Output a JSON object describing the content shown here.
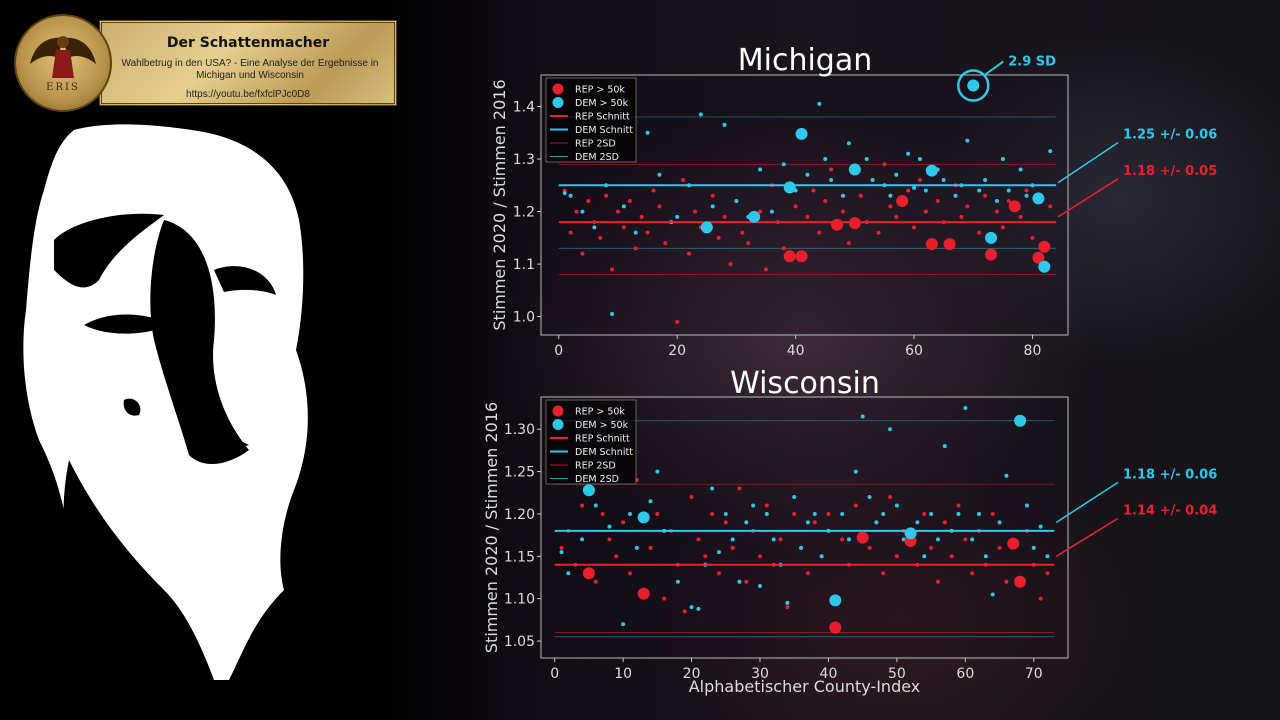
{
  "banner": {
    "title": "Der Schattenmacher",
    "subtitle": "Wahlbetrug in den USA? - Eine Analyse der Ergebnisse in Michigan und Wisconsin",
    "url": "https://youtu.be/fxfclPJc0D8",
    "logo_text": "ERIS"
  },
  "colors": {
    "rep": "#e8202e",
    "dem": "#2ec8ec",
    "axis": "#cccccc"
  },
  "chart_data": [
    {
      "type": "scatter",
      "title": "Michigan",
      "ylabel": "Stimmen 2020 / Stimmen 2016",
      "xlabel": "",
      "xlim": [
        -3,
        86
      ],
      "ylim": [
        0.965,
        1.46
      ],
      "xticks": [
        0,
        20,
        40,
        60,
        80
      ],
      "yticks": [
        1.0,
        1.1,
        1.2,
        1.3,
        1.4
      ],
      "ytick_labels": [
        "1.0",
        "1.1",
        "1.2",
        "1.3",
        "1.4"
      ],
      "legend": [
        "REP > 50k",
        "DEM > 50k",
        "REP Schnitt",
        "DEM Schnitt",
        "REP 2SD",
        "DEM 2SD"
      ],
      "legend_position": "top-left",
      "rep_mean": 1.18,
      "dem_mean": 1.25,
      "rep_2sd": [
        1.08,
        1.29
      ],
      "dem_2sd": [
        1.13,
        1.38
      ],
      "annotations": [
        {
          "text": "2.9 SD",
          "color": "dem",
          "x": 70,
          "y": 1.44
        },
        {
          "text": "1.25 +/- 0.06",
          "color": "dem",
          "y": 1.255
        },
        {
          "text": "1.18 +/- 0.05",
          "color": "rep",
          "y": 1.19
        }
      ],
      "rep_large": [
        [
          39,
          1.115
        ],
        [
          41,
          1.115
        ],
        [
          47,
          1.175
        ],
        [
          50,
          1.178
        ],
        [
          58,
          1.22
        ],
        [
          63,
          1.138
        ],
        [
          66,
          1.138
        ],
        [
          73,
          1.118
        ],
        [
          77,
          1.21
        ],
        [
          81,
          1.112
        ],
        [
          82,
          1.133
        ]
      ],
      "dem_large": [
        [
          25,
          1.17
        ],
        [
          33,
          1.19
        ],
        [
          39,
          1.246
        ],
        [
          41,
          1.348
        ],
        [
          50,
          1.28
        ],
        [
          63,
          1.278
        ],
        [
          70,
          1.44
        ],
        [
          73,
          1.15
        ],
        [
          81,
          1.225
        ],
        [
          82,
          1.095
        ]
      ],
      "rep_small": [
        [
          1,
          1.24
        ],
        [
          2,
          1.16
        ],
        [
          3,
          1.2
        ],
        [
          4,
          1.12
        ],
        [
          5,
          1.22
        ],
        [
          6,
          1.18
        ],
        [
          7,
          1.15
        ],
        [
          8,
          1.23
        ],
        [
          9,
          1.09
        ],
        [
          10,
          1.2
        ],
        [
          11,
          1.17
        ],
        [
          12,
          1.22
        ],
        [
          13,
          1.13
        ],
        [
          14,
          1.19
        ],
        [
          15,
          1.16
        ],
        [
          16,
          1.24
        ],
        [
          17,
          1.21
        ],
        [
          18,
          1.14
        ],
        [
          19,
          1.18
        ],
        [
          20,
          0.99
        ],
        [
          21,
          1.26
        ],
        [
          22,
          1.12
        ],
        [
          23,
          1.2
        ],
        [
          24,
          1.17
        ],
        [
          26,
          1.23
        ],
        [
          27,
          1.15
        ],
        [
          28,
          1.19
        ],
        [
          29,
          1.1
        ],
        [
          30,
          1.22
        ],
        [
          31,
          1.16
        ],
        [
          32,
          1.14
        ],
        [
          34,
          1.2
        ],
        [
          35,
          1.09
        ],
        [
          36,
          1.25
        ],
        [
          37,
          1.18
        ],
        [
          38,
          1.13
        ],
        [
          40,
          1.21
        ],
        [
          42,
          1.19
        ],
        [
          43,
          1.24
        ],
        [
          44,
          1.16
        ],
        [
          45,
          1.22
        ],
        [
          46,
          1.28
        ],
        [
          48,
          1.2
        ],
        [
          49,
          1.14
        ],
        [
          51,
          1.23
        ],
        [
          52,
          1.18
        ],
        [
          53,
          1.26
        ],
        [
          54,
          1.16
        ],
        [
          55,
          1.29
        ],
        [
          56,
          1.21
        ],
        [
          57,
          1.19
        ],
        [
          59,
          1.24
        ],
        [
          60,
          1.17
        ],
        [
          61,
          1.26
        ],
        [
          62,
          1.2
        ],
        [
          64,
          1.22
        ],
        [
          65,
          1.18
        ],
        [
          67,
          1.25
        ],
        [
          68,
          1.19
        ],
        [
          69,
          1.21
        ],
        [
          71,
          1.16
        ],
        [
          72,
          1.23
        ],
        [
          74,
          1.2
        ],
        [
          75,
          1.17
        ],
        [
          76,
          1.22
        ],
        [
          78,
          1.19
        ],
        [
          79,
          1.24
        ],
        [
          80,
          1.15
        ],
        [
          83,
          1.21
        ]
      ],
      "dem_small": [
        [
          1,
          1.235
        ],
        [
          2,
          1.23
        ],
        [
          4,
          1.2
        ],
        [
          6,
          1.17
        ],
        [
          8,
          1.25
        ],
        [
          9,
          1.005
        ],
        [
          11,
          1.21
        ],
        [
          13,
          1.16
        ],
        [
          15,
          1.35
        ],
        [
          17,
          1.27
        ],
        [
          19,
          1.18
        ],
        [
          20,
          1.19
        ],
        [
          22,
          1.25
        ],
        [
          24,
          1.385
        ],
        [
          26,
          1.21
        ],
        [
          28,
          1.365
        ],
        [
          30,
          1.22
        ],
        [
          32,
          1.19
        ],
        [
          34,
          1.28
        ],
        [
          36,
          1.2
        ],
        [
          38,
          1.29
        ],
        [
          40,
          1.24
        ],
        [
          42,
          1.27
        ],
        [
          44,
          1.405
        ],
        [
          45,
          1.3
        ],
        [
          46,
          1.26
        ],
        [
          48,
          1.23
        ],
        [
          49,
          1.33
        ],
        [
          52,
          1.3
        ],
        [
          53,
          1.26
        ],
        [
          55,
          1.25
        ],
        [
          56,
          1.23
        ],
        [
          57,
          1.27
        ],
        [
          59,
          1.31
        ],
        [
          60,
          1.245
        ],
        [
          61,
          1.3
        ],
        [
          62,
          1.24
        ],
        [
          64,
          1.28
        ],
        [
          65,
          1.26
        ],
        [
          67,
          1.23
        ],
        [
          68,
          1.25
        ],
        [
          69,
          1.335
        ],
        [
          71,
          1.24
        ],
        [
          72,
          1.26
        ],
        [
          74,
          1.22
        ],
        [
          75,
          1.3
        ],
        [
          76,
          1.24
        ],
        [
          78,
          1.28
        ],
        [
          79,
          1.23
        ],
        [
          80,
          1.25
        ],
        [
          83,
          1.315
        ]
      ]
    },
    {
      "type": "scatter",
      "title": "Wisconsin",
      "ylabel": "Stimmen 2020 / Stimmen 2016",
      "xlabel": "Alphabetischer County-Index",
      "xlim": [
        -2,
        75
      ],
      "ylim": [
        1.03,
        1.338
      ],
      "xticks": [
        0,
        10,
        20,
        30,
        40,
        50,
        60,
        70
      ],
      "yticks": [
        1.05,
        1.1,
        1.15,
        1.2,
        1.25,
        1.3
      ],
      "ytick_labels": [
        "1.05",
        "1.10",
        "1.15",
        "1.20",
        "1.25",
        "1.30"
      ],
      "legend": [
        "REP > 50k",
        "DEM > 50k",
        "REP Schnitt",
        "DEM Schnitt",
        "REP 2SD",
        "DEM 2SD"
      ],
      "legend_position": "top-left",
      "rep_mean": 1.14,
      "dem_mean": 1.18,
      "rep_2sd": [
        1.06,
        1.235
      ],
      "dem_2sd": [
        1.055,
        1.31
      ],
      "annotations": [
        {
          "text": "1.18 +/- 0.06",
          "color": "dem",
          "y": 1.19
        },
        {
          "text": "1.14 +/- 0.04",
          "color": "rep",
          "y": 1.15
        }
      ],
      "rep_large": [
        [
          5,
          1.13
        ],
        [
          13,
          1.106
        ],
        [
          41,
          1.066
        ],
        [
          45,
          1.172
        ],
        [
          52,
          1.168
        ],
        [
          67,
          1.165
        ],
        [
          68,
          1.12
        ]
      ],
      "dem_large": [
        [
          5,
          1.228
        ],
        [
          13,
          1.196
        ],
        [
          41,
          1.098
        ],
        [
          52,
          1.177
        ],
        [
          68,
          1.31
        ]
      ],
      "rep_small": [
        [
          1,
          1.16
        ],
        [
          2,
          1.18
        ],
        [
          3,
          1.14
        ],
        [
          4,
          1.21
        ],
        [
          6,
          1.12
        ],
        [
          7,
          1.2
        ],
        [
          8,
          1.17
        ],
        [
          9,
          1.15
        ],
        [
          10,
          1.19
        ],
        [
          11,
          1.13
        ],
        [
          12,
          1.24
        ],
        [
          14,
          1.16
        ],
        [
          15,
          1.2
        ],
        [
          16,
          1.1
        ],
        [
          17,
          1.18
        ],
        [
          18,
          1.14
        ],
        [
          19,
          1.085
        ],
        [
          20,
          1.22
        ],
        [
          21,
          1.17
        ],
        [
          22,
          1.15
        ],
        [
          23,
          1.2
        ],
        [
          24,
          1.13
        ],
        [
          25,
          1.19
        ],
        [
          26,
          1.16
        ],
        [
          27,
          1.23
        ],
        [
          28,
          1.12
        ],
        [
          29,
          1.18
        ],
        [
          30,
          1.15
        ],
        [
          31,
          1.21
        ],
        [
          32,
          1.14
        ],
        [
          33,
          1.17
        ],
        [
          34,
          1.09
        ],
        [
          35,
          1.2
        ],
        [
          36,
          1.16
        ],
        [
          37,
          1.13
        ],
        [
          38,
          1.19
        ],
        [
          39,
          1.15
        ],
        [
          40,
          1.2
        ],
        [
          42,
          1.17
        ],
        [
          43,
          1.14
        ],
        [
          44,
          1.21
        ],
        [
          46,
          1.16
        ],
        [
          47,
          1.19
        ],
        [
          48,
          1.13
        ],
        [
          49,
          1.22
        ],
        [
          50,
          1.15
        ],
        [
          51,
          1.18
        ],
        [
          53,
          1.14
        ],
        [
          54,
          1.2
        ],
        [
          55,
          1.16
        ],
        [
          56,
          1.12
        ],
        [
          57,
          1.19
        ],
        [
          58,
          1.15
        ],
        [
          59,
          1.21
        ],
        [
          60,
          1.17
        ],
        [
          61,
          1.13
        ],
        [
          62,
          1.18
        ],
        [
          63,
          1.14
        ],
        [
          64,
          1.2
        ],
        [
          65,
          1.16
        ],
        [
          66,
          1.12
        ],
        [
          69,
          1.18
        ],
        [
          70,
          1.14
        ],
        [
          71,
          1.1
        ],
        [
          72,
          1.13
        ]
      ],
      "dem_small": [
        [
          1,
          1.155
        ],
        [
          2,
          1.13
        ],
        [
          4,
          1.17
        ],
        [
          6,
          1.21
        ],
        [
          8,
          1.185
        ],
        [
          10,
          1.07
        ],
        [
          11,
          1.2
        ],
        [
          12,
          1.16
        ],
        [
          14,
          1.215
        ],
        [
          15,
          1.25
        ],
        [
          16,
          1.18
        ],
        [
          18,
          1.12
        ],
        [
          20,
          1.09
        ],
        [
          21,
          1.088
        ],
        [
          22,
          1.14
        ],
        [
          23,
          1.23
        ],
        [
          24,
          1.155
        ],
        [
          25,
          1.2
        ],
        [
          26,
          1.17
        ],
        [
          27,
          1.12
        ],
        [
          28,
          1.19
        ],
        [
          29,
          1.21
        ],
        [
          30,
          1.115
        ],
        [
          31,
          1.2
        ],
        [
          32,
          1.17
        ],
        [
          33,
          1.14
        ],
        [
          34,
          1.095
        ],
        [
          35,
          1.22
        ],
        [
          36,
          1.16
        ],
        [
          37,
          1.19
        ],
        [
          38,
          1.2
        ],
        [
          39,
          1.15
        ],
        [
          40,
          1.18
        ],
        [
          42,
          1.2
        ],
        [
          43,
          1.17
        ],
        [
          44,
          1.25
        ],
        [
          45,
          1.315
        ],
        [
          46,
          1.22
        ],
        [
          47,
          1.19
        ],
        [
          48,
          1.2
        ],
        [
          49,
          1.3
        ],
        [
          50,
          1.21
        ],
        [
          51,
          1.17
        ],
        [
          53,
          1.19
        ],
        [
          54,
          1.15
        ],
        [
          55,
          1.2
        ],
        [
          56,
          1.17
        ],
        [
          57,
          1.28
        ],
        [
          58,
          1.18
        ],
        [
          59,
          1.2
        ],
        [
          60,
          1.325
        ],
        [
          61,
          1.17
        ],
        [
          62,
          1.2
        ],
        [
          63,
          1.15
        ],
        [
          64,
          1.105
        ],
        [
          65,
          1.19
        ],
        [
          66,
          1.245
        ],
        [
          69,
          1.21
        ],
        [
          70,
          1.16
        ],
        [
          71,
          1.185
        ],
        [
          72,
          1.15
        ]
      ]
    }
  ]
}
